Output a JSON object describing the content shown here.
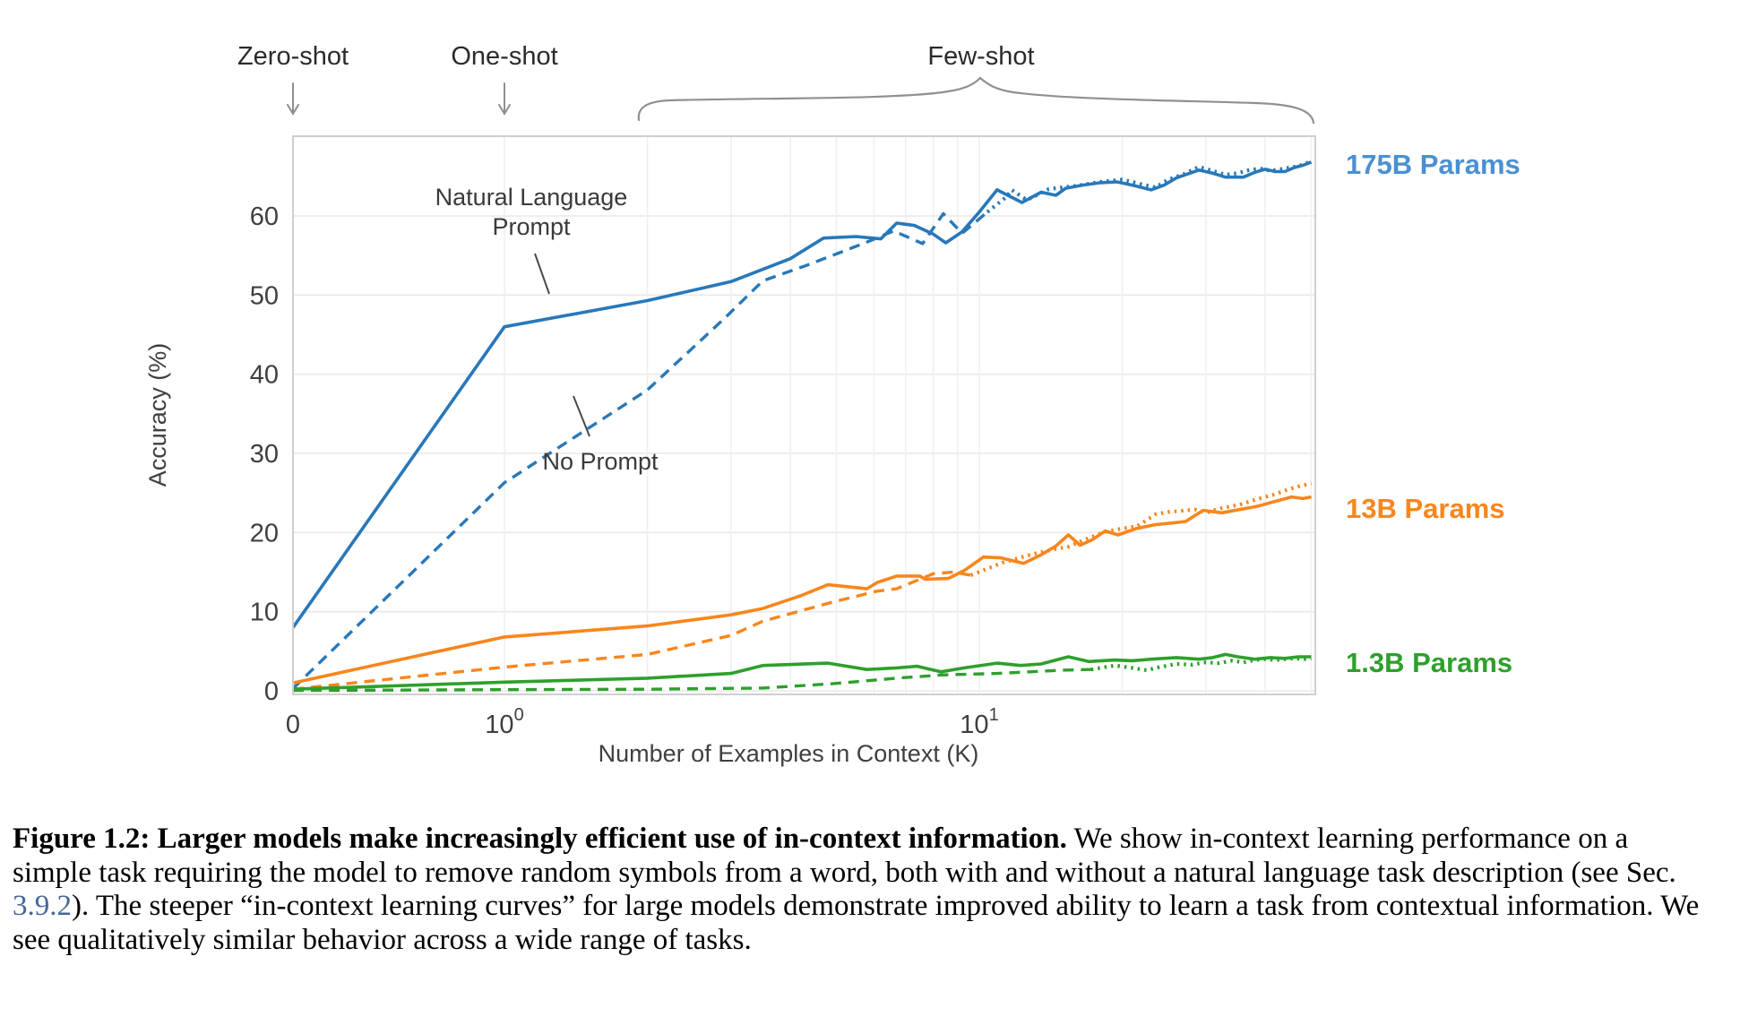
{
  "chart_data": {
    "type": "line",
    "xlabel": "Number of Examples in Context  (K)",
    "ylabel": "Accuracy (%)",
    "x_axis": {
      "scale": "symlog",
      "kmax": 51,
      "ticks": [
        {
          "k": 0,
          "base": "0",
          "exp": ""
        },
        {
          "k": 1,
          "base": "10",
          "exp": "0"
        },
        {
          "k": 10,
          "base": "10",
          "exp": "1"
        }
      ],
      "gridline_ks": [
        1,
        2,
        3,
        4,
        5,
        6,
        7,
        8,
        9,
        10,
        20,
        30,
        40,
        50
      ]
    },
    "y_axis": {
      "min": 0,
      "max": 70,
      "ticks": [
        0,
        10,
        20,
        30,
        40,
        50,
        60
      ]
    },
    "grid": true,
    "legend_position": "right-outside",
    "series": [
      {
        "name": "175B Natural Language Prompt",
        "style": "solid",
        "color": "#2878b9",
        "points": [
          [
            0,
            8
          ],
          [
            1,
            46
          ],
          [
            2,
            49.3
          ],
          [
            3,
            51.7
          ],
          [
            4,
            54.6
          ],
          [
            4.7,
            57.2
          ],
          [
            5.5,
            57.4
          ],
          [
            6.2,
            57.1
          ],
          [
            6.7,
            59.1
          ],
          [
            7.3,
            58.8
          ],
          [
            8,
            57.7
          ],
          [
            8.5,
            56.6
          ],
          [
            9.2,
            58
          ],
          [
            10,
            60.5
          ],
          [
            10.9,
            63.3
          ],
          [
            12.3,
            61.7
          ],
          [
            13.5,
            63
          ],
          [
            14.5,
            62.6
          ],
          [
            15.2,
            63.5
          ],
          [
            16.5,
            63.9
          ],
          [
            18,
            64.2
          ],
          [
            19.5,
            64.3
          ],
          [
            21,
            63.9
          ],
          [
            23,
            63.3
          ],
          [
            24.5,
            63.9
          ],
          [
            26,
            64.8
          ],
          [
            29,
            65.8
          ],
          [
            31,
            65.4
          ],
          [
            33,
            64.9
          ],
          [
            36,
            64.9
          ],
          [
            38,
            65.5
          ],
          [
            40,
            65.9
          ],
          [
            42,
            65.6
          ],
          [
            44,
            65.6
          ],
          [
            46,
            66.1
          ],
          [
            48,
            66.4
          ],
          [
            50,
            66.8
          ]
        ]
      },
      {
        "name": "175B No Prompt",
        "style": "dashed",
        "color": "#2878b9",
        "dot_after": 11,
        "points": [
          [
            0,
            0.3
          ],
          [
            1,
            26.3
          ],
          [
            2,
            38
          ],
          [
            2.9,
            47
          ],
          [
            3.5,
            51.8
          ],
          [
            4.3,
            53.7
          ],
          [
            5,
            55.2
          ],
          [
            5.8,
            56.7
          ],
          [
            6.6,
            58.1
          ],
          [
            7.6,
            56.5
          ],
          [
            8.4,
            60.3
          ],
          [
            9.2,
            57.8
          ],
          [
            10.4,
            60.5
          ],
          [
            11.4,
            62.4
          ],
          [
            11.7,
            63.3
          ],
          [
            12.6,
            62
          ],
          [
            14,
            63.4
          ],
          [
            16,
            63.8
          ],
          [
            18,
            64.3
          ],
          [
            20,
            64.6
          ],
          [
            22,
            64
          ],
          [
            23.5,
            63.6
          ],
          [
            25,
            64.6
          ],
          [
            27,
            65.3
          ],
          [
            29,
            66.2
          ],
          [
            31,
            65.7
          ],
          [
            33,
            65.2
          ],
          [
            35,
            65.4
          ],
          [
            37,
            65.8
          ],
          [
            39,
            66
          ],
          [
            41,
            65.7
          ],
          [
            43,
            65.9
          ],
          [
            45,
            66.1
          ],
          [
            47,
            66.3
          ],
          [
            50,
            66.9
          ]
        ]
      },
      {
        "name": "13B Natural Language Prompt",
        "style": "solid",
        "color": "#f8861d",
        "points": [
          [
            0,
            1
          ],
          [
            1,
            6.8
          ],
          [
            2,
            8.2
          ],
          [
            3,
            9.6
          ],
          [
            3.5,
            10.4
          ],
          [
            4.2,
            12
          ],
          [
            4.8,
            13.4
          ],
          [
            5.8,
            12.9
          ],
          [
            6.1,
            13.7
          ],
          [
            6.7,
            14.5
          ],
          [
            7.5,
            14.5
          ],
          [
            7.7,
            14.1
          ],
          [
            8.6,
            14.2
          ],
          [
            9.3,
            15.2
          ],
          [
            10.2,
            16.9
          ],
          [
            11.1,
            16.8
          ],
          [
            12.4,
            16.1
          ],
          [
            13.5,
            17.2
          ],
          [
            14.5,
            18.3
          ],
          [
            15.4,
            19.7
          ],
          [
            16.3,
            18.4
          ],
          [
            17.3,
            19.1
          ],
          [
            18.4,
            20.2
          ],
          [
            19.6,
            19.7
          ],
          [
            21.4,
            20.5
          ],
          [
            23.5,
            21
          ],
          [
            25.5,
            21.2
          ],
          [
            27.2,
            21.4
          ],
          [
            29.6,
            22.8
          ],
          [
            32.4,
            22.5
          ],
          [
            35.3,
            22.9
          ],
          [
            38.4,
            23.3
          ],
          [
            41.8,
            23.9
          ],
          [
            45.5,
            24.5
          ],
          [
            48,
            24.3
          ],
          [
            50,
            24.5
          ]
        ]
      },
      {
        "name": "13B No Prompt",
        "style": "dashed",
        "color": "#f8861d",
        "dot_after": 11,
        "points": [
          [
            0,
            0.2
          ],
          [
            1,
            3
          ],
          [
            2,
            4.6
          ],
          [
            3,
            7
          ],
          [
            3.5,
            8.8
          ],
          [
            4.9,
            11.2
          ],
          [
            6.1,
            12.6
          ],
          [
            6.7,
            12.9
          ],
          [
            8,
            14.8
          ],
          [
            8.8,
            15
          ],
          [
            9.6,
            14.6
          ],
          [
            11.2,
            16.2
          ],
          [
            13,
            17.3
          ],
          [
            14.7,
            18
          ],
          [
            15.4,
            18.2
          ],
          [
            16.5,
            19
          ],
          [
            18.4,
            20.1
          ],
          [
            20,
            20.5
          ],
          [
            21.5,
            20.8
          ],
          [
            23.5,
            22.3
          ],
          [
            25,
            22.6
          ],
          [
            27.3,
            22.8
          ],
          [
            28.5,
            22.9
          ],
          [
            30,
            22.5
          ],
          [
            32.4,
            23.1
          ],
          [
            35.3,
            23.5
          ],
          [
            38.4,
            24.2
          ],
          [
            41.8,
            24.8
          ],
          [
            44.5,
            25.4
          ],
          [
            47.5,
            25.9
          ],
          [
            50,
            26.2
          ]
        ]
      },
      {
        "name": "1.3B Natural Language Prompt",
        "style": "solid",
        "color": "#2da02c",
        "points": [
          [
            0,
            0.2
          ],
          [
            1,
            1.1
          ],
          [
            2,
            1.6
          ],
          [
            3,
            2.2
          ],
          [
            3.5,
            3.2
          ],
          [
            4.8,
            3.5
          ],
          [
            5.8,
            2.7
          ],
          [
            6.7,
            2.9
          ],
          [
            7.4,
            3.1
          ],
          [
            8.3,
            2.4
          ],
          [
            9.3,
            2.9
          ],
          [
            10.9,
            3.5
          ],
          [
            12.2,
            3.2
          ],
          [
            13.5,
            3.4
          ],
          [
            15.4,
            4.3
          ],
          [
            17,
            3.7
          ],
          [
            19.3,
            3.9
          ],
          [
            21,
            3.8
          ],
          [
            23,
            4
          ],
          [
            26,
            4.2
          ],
          [
            29,
            4
          ],
          [
            31,
            4.2
          ],
          [
            33,
            4.6
          ],
          [
            35,
            4.3
          ],
          [
            38,
            4
          ],
          [
            41,
            4.2
          ],
          [
            44,
            4.1
          ],
          [
            47,
            4.3
          ],
          [
            50,
            4.3
          ]
        ]
      },
      {
        "name": "1.3B No Prompt",
        "style": "dashed",
        "color": "#2da02c",
        "dot_after": 19,
        "points": [
          [
            0,
            0.05
          ],
          [
            1,
            0.15
          ],
          [
            2,
            0.2
          ],
          [
            3.5,
            0.35
          ],
          [
            4.9,
            0.9
          ],
          [
            6.7,
            1.6
          ],
          [
            8.3,
            2
          ],
          [
            10.9,
            2.2
          ],
          [
            12.8,
            2.4
          ],
          [
            14.9,
            2.6
          ],
          [
            17.2,
            2.7
          ],
          [
            19.3,
            3.2
          ],
          [
            21,
            2.9
          ],
          [
            22.5,
            2.6
          ],
          [
            24,
            3
          ],
          [
            26,
            3.4
          ],
          [
            28,
            3.3
          ],
          [
            30,
            3.6
          ],
          [
            32,
            3.5
          ],
          [
            34,
            3.8
          ],
          [
            36,
            3.6
          ],
          [
            38,
            3.9
          ],
          [
            40,
            4
          ],
          [
            42,
            3.9
          ],
          [
            44,
            4
          ],
          [
            46,
            4.1
          ],
          [
            48,
            4
          ],
          [
            50,
            4.1
          ]
        ]
      }
    ],
    "series_labels": [
      {
        "text": "175B Params",
        "color": "#4a90d2"
      },
      {
        "text": "13B Params",
        "color": "#f8861d"
      },
      {
        "text": "1.3B Params",
        "color": "#2da02c"
      }
    ],
    "regime_labels": [
      {
        "text": "Zero-shot",
        "k": 0
      },
      {
        "text": "One-shot",
        "k": 1
      },
      {
        "text": "Few-shot"
      }
    ],
    "annotations": [
      {
        "id": "natural-language-prompt",
        "lines": [
          "Natural Language",
          "Prompt"
        ]
      },
      {
        "id": "no-prompt",
        "lines": [
          "No Prompt"
        ]
      }
    ]
  },
  "caption": {
    "bold": "Figure 1.2: Larger models make increasingly efficient use of in-context information.",
    "text_before_link": "  We show in-context learning performance on a simple task requiring the model to remove random symbols from a word, both with and without a natural language task description (see Sec. ",
    "link": "3.9.2",
    "text_after_link": ").  The steeper “in-context learning curves” for large models demonstrate improved ability to learn a task from contextual information.  We see qualitatively similar behavior across a wide range of tasks."
  }
}
